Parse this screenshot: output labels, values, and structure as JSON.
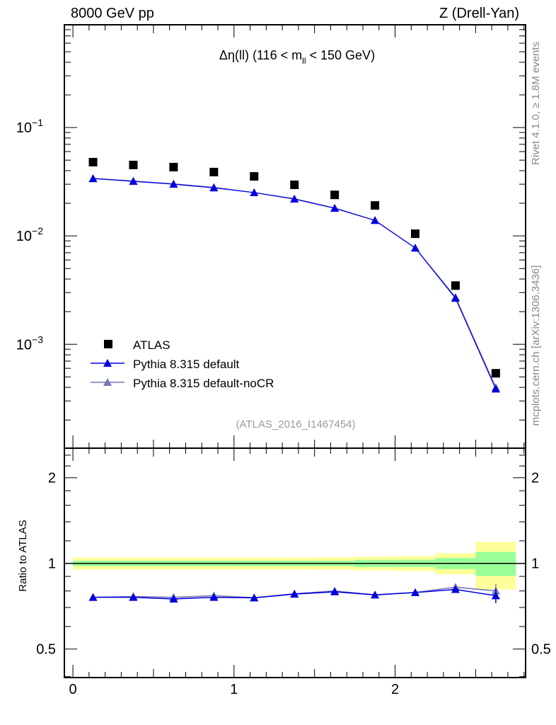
{
  "header": {
    "left": "8000 GeV pp",
    "right": "Z (Drell-Yan)"
  },
  "side_labels": {
    "rivet": "Rivet 4.1.0, ≥ 1.8M events",
    "mcplots": "mcplots.cern.ch [arXiv:1306.3436]"
  },
  "chart_data": {
    "type": "scatter",
    "title": "Δη(ll) (116 < m_ll < 150 GeV)",
    "title_parts": {
      "main": "Δη(ll) (116 < m",
      "sub": "ll",
      "tail": " < 150 GeV)"
    },
    "analysis_tag": "(ATLAS_2016_I1467454)",
    "xlim": [
      -0.053,
      2.81
    ],
    "ylim": [
      0.00011,
      0.887
    ],
    "yscale": "log",
    "x_ticks": [
      "0",
      "1",
      "2"
    ],
    "y_ticks": [
      {
        "v": 0.1,
        "base": "10",
        "exp": "−1"
      },
      {
        "v": 0.01,
        "base": "10",
        "exp": "−2"
      },
      {
        "v": 0.001,
        "base": "10",
        "exp": "−3"
      }
    ],
    "x": [
      0.125,
      0.375,
      0.625,
      0.875,
      1.125,
      1.375,
      1.625,
      1.875,
      2.125,
      2.375,
      2.625
    ],
    "bin_edges": [
      0,
      0.25,
      0.5,
      0.75,
      1.0,
      1.25,
      1.5,
      1.75,
      2.0,
      2.25,
      2.5,
      2.75
    ],
    "legend_position": "bottom-left",
    "series": [
      {
        "name": "ATLAS",
        "marker": "square",
        "color": "#000000",
        "values": [
          0.0479,
          0.0451,
          0.0431,
          0.0388,
          0.0354,
          0.0296,
          0.0239,
          0.0191,
          0.01047,
          0.00348,
          0.00054
        ],
        "band_total": [
          0.048,
          0.048,
          0.048,
          0.048,
          0.048,
          0.048,
          0.05,
          0.055,
          0.06,
          0.085,
          0.19
        ],
        "band_stat": [
          0.022,
          0.022,
          0.022,
          0.022,
          0.022,
          0.022,
          0.022,
          0.03,
          0.03,
          0.045,
          0.097
        ]
      },
      {
        "name": "Pythia 8.315 default",
        "marker": "triangle",
        "color": "#0000dd",
        "values": [
          0.0338,
          0.0319,
          0.03,
          0.0278,
          0.0251,
          0.0219,
          0.018,
          0.0139,
          0.00774,
          0.00266,
          0.000387
        ],
        "ratio": [
          0.76,
          0.76,
          0.75,
          0.76,
          0.757,
          0.78,
          0.795,
          0.775,
          0.79,
          0.81,
          0.77
        ],
        "ratio_err": [
          0,
          0,
          0,
          0,
          0,
          0,
          0,
          0,
          0,
          0.01,
          0.045
        ]
      },
      {
        "name": "Pythia 8.315 default-noCR",
        "marker": "triangle",
        "color": "#7777bb",
        "values": [
          0.034,
          0.0321,
          0.0302,
          0.0281,
          0.0251,
          0.022,
          0.0181,
          0.0139,
          0.00774,
          0.00272,
          0.0004
        ],
        "ratio": [
          0.76,
          0.765,
          0.76,
          0.77,
          0.757,
          0.782,
          0.8,
          0.775,
          0.79,
          0.825,
          0.8
        ],
        "ratio_err": [
          0,
          0,
          0,
          0,
          0,
          0,
          0,
          0,
          0,
          0.012,
          0.045
        ]
      }
    ],
    "ratio_panel": {
      "ylabel": "Ratio to ATLAS",
      "yscale": "log2",
      "ylim": [
        0.397,
        2.54
      ],
      "y_ticks": [
        {
          "v": 0.5,
          "label": "0.5"
        },
        {
          "v": 1,
          "label": "1"
        },
        {
          "v": 2,
          "label": "2"
        }
      ]
    }
  }
}
